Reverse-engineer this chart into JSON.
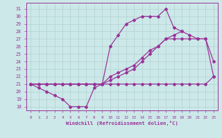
{
  "xlabel": "Windchill (Refroidissement éolien,°C)",
  "bg_color": "#cce8e8",
  "line_color": "#993399",
  "grid_color": "#aacccc",
  "xlim": [
    -0.5,
    23.5
  ],
  "ylim": [
    17.5,
    31.8
  ],
  "xticks": [
    0,
    1,
    2,
    3,
    4,
    5,
    6,
    7,
    8,
    9,
    10,
    11,
    12,
    13,
    14,
    15,
    16,
    17,
    18,
    19,
    20,
    21,
    22,
    23
  ],
  "yticks": [
    18,
    19,
    20,
    21,
    22,
    23,
    24,
    25,
    26,
    27,
    28,
    29,
    30,
    31
  ],
  "line1_x": [
    0,
    1,
    2,
    3,
    4,
    5,
    6,
    7,
    8,
    9,
    10,
    11,
    12,
    13,
    14,
    15,
    16,
    17,
    18,
    19,
    20,
    21,
    22,
    23
  ],
  "line1_y": [
    21,
    21,
    21,
    21,
    21,
    21,
    21,
    21,
    21,
    21,
    21,
    21,
    21,
    21,
    21,
    21,
    21,
    21,
    21,
    21,
    21,
    21,
    21,
    22
  ],
  "line2_x": [
    0,
    1,
    2,
    3,
    4,
    5,
    6,
    7,
    8,
    9,
    10,
    11,
    12,
    13,
    14,
    15,
    16,
    17,
    18,
    19,
    20,
    21,
    22,
    23
  ],
  "line2_y": [
    21,
    21,
    21,
    21,
    21,
    21,
    21,
    21,
    21,
    21,
    21.5,
    22,
    22.5,
    23,
    24,
    25,
    26,
    27,
    27,
    27,
    27,
    27,
    27,
    22
  ],
  "line3_x": [
    0,
    1,
    2,
    3,
    4,
    5,
    6,
    7,
    8,
    9,
    10,
    11,
    12,
    13,
    14,
    15,
    16,
    17,
    18,
    19,
    20,
    21,
    22,
    23
  ],
  "line3_y": [
    21,
    21,
    21,
    21,
    21,
    21,
    21,
    21,
    21,
    21,
    22,
    22.5,
    23,
    23.5,
    24.5,
    25.5,
    26,
    27,
    27.5,
    28,
    27.5,
    27,
    27,
    24
  ],
  "line4_x": [
    0,
    1,
    2,
    3,
    4,
    5,
    6,
    7,
    8,
    9,
    10,
    11,
    12,
    13,
    14,
    15,
    16,
    17,
    18,
    19,
    20,
    21,
    22,
    23
  ],
  "line4_y": [
    21,
    20.5,
    20,
    19.5,
    19,
    18,
    18,
    18,
    20.5,
    21,
    26,
    27.5,
    29,
    29.5,
    30,
    30,
    30,
    31,
    28.5,
    28,
    null,
    null,
    null,
    null
  ],
  "line5_x": [
    0,
    1,
    2,
    3,
    4,
    5,
    6,
    7,
    8,
    9,
    10,
    11,
    12,
    13,
    14,
    15,
    16,
    17,
    18,
    19,
    20,
    21,
    22,
    23
  ],
  "line5_y": [
    null,
    null,
    null,
    null,
    null,
    null,
    null,
    null,
    null,
    null,
    null,
    null,
    null,
    null,
    null,
    null,
    null,
    null,
    null,
    null,
    null,
    null,
    22,
    null
  ]
}
